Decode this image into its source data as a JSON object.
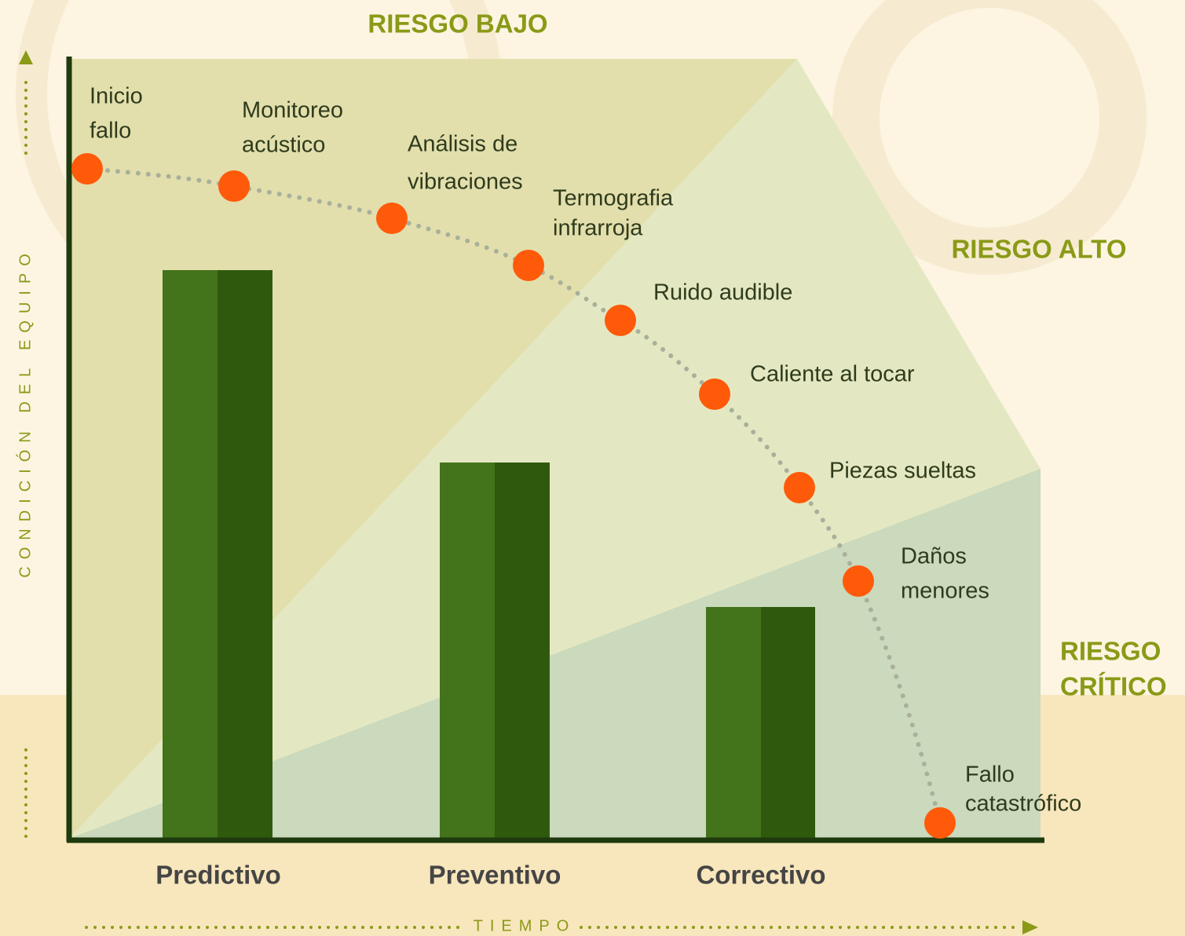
{
  "zones": {
    "low": "RIESGO BAJO",
    "high": "RIESGO ALTO",
    "critical": [
      "RIESGO",
      "CRÍTICO"
    ]
  },
  "y_axis_label": "CONDICIÓN DEL EQUIPO",
  "x_axis_label": "TIEMPO",
  "categories": [
    "Predictivo",
    "Preventivo",
    "Correctivo"
  ],
  "stages": [
    {
      "label": [
        "Inicio",
        "fallo"
      ]
    },
    {
      "label": [
        "Monitoreo",
        "acústico"
      ]
    },
    {
      "label": [
        "Análisis de",
        "vibraciones"
      ]
    },
    {
      "label": [
        "Termografia",
        "infrarroja"
      ]
    },
    {
      "label": [
        "Ruido audible"
      ]
    },
    {
      "label": [
        "Caliente al tocar"
      ]
    },
    {
      "label": [
        "Piezas sueltas"
      ]
    },
    {
      "label": [
        "Daños",
        "menores"
      ]
    },
    {
      "label": [
        "Fallo",
        "catastrófico"
      ]
    }
  ]
}
